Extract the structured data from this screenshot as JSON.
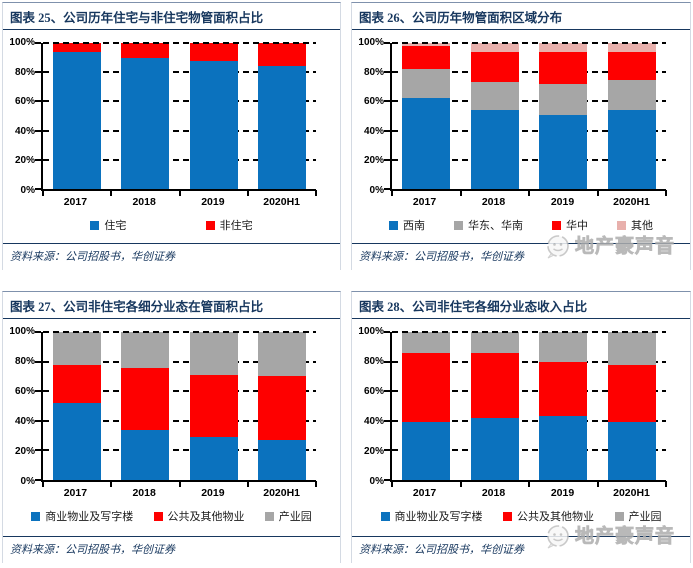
{
  "source_note": "资料来源：公司招股书，华创证券",
  "watermark": {
    "text": "地产豪声音",
    "logo": "speech-bubble-face-icon"
  },
  "colors": {
    "blue": "#0B72BE",
    "red": "#FE0000",
    "gray": "#A6A6A6",
    "pink": "#E8B0AC",
    "navy": "#17375E",
    "axis": "#000000",
    "watermark_gray": "#BDBDBD"
  },
  "chart_data": [
    {
      "type": "bar",
      "subtype": "stacked-percent",
      "title": "图表 25、公司历年住宅与非住宅物管面积占比",
      "categories": [
        "2017",
        "2018",
        "2019",
        "2020H1"
      ],
      "series": [
        {
          "name": "住宅",
          "color": "#0B72BE",
          "values": [
            94,
            90,
            88,
            84
          ]
        },
        {
          "name": "非住宅",
          "color": "#FE0000",
          "values": [
            6,
            10,
            12,
            16
          ]
        }
      ],
      "ylabel": "",
      "xlabel": "",
      "ylim": [
        0,
        100
      ],
      "yticks": [
        "0%",
        "20%",
        "40%",
        "60%",
        "80%",
        "100%"
      ],
      "grid": "dashed-horizontal",
      "legend_position": "bottom"
    },
    {
      "type": "bar",
      "subtype": "stacked-percent",
      "title": "图表 26、公司历年物管面积区域分布",
      "categories": [
        "2017",
        "2018",
        "2019",
        "2020H1"
      ],
      "series": [
        {
          "name": "西南",
          "color": "#0B72BE",
          "values": [
            62,
            54,
            51,
            54
          ]
        },
        {
          "name": "华东、华南",
          "color": "#A6A6A6",
          "values": [
            20,
            19,
            21,
            21
          ]
        },
        {
          "name": "华中",
          "color": "#FE0000",
          "values": [
            16,
            21,
            22,
            19
          ]
        },
        {
          "name": "其他",
          "color": "#E8B0AC",
          "values": [
            2,
            6,
            6,
            6
          ]
        }
      ],
      "ylabel": "",
      "xlabel": "",
      "ylim": [
        0,
        100
      ],
      "yticks": [
        "0%",
        "20%",
        "40%",
        "60%",
        "80%",
        "100%"
      ],
      "grid": "dashed-horizontal",
      "legend_position": "bottom"
    },
    {
      "type": "bar",
      "subtype": "stacked-percent",
      "title": "图表 27、公司非住宅各细分业态在管面积占比",
      "categories": [
        "2017",
        "2018",
        "2019",
        "2020H1"
      ],
      "series": [
        {
          "name": "商业物业及写字楼",
          "color": "#0B72BE",
          "values": [
            52,
            34,
            29,
            27
          ]
        },
        {
          "name": "公共及其他物业",
          "color": "#FE0000",
          "values": [
            26,
            42,
            42,
            43
          ]
        },
        {
          "name": "产业园",
          "color": "#A6A6A6",
          "values": [
            22,
            24,
            29,
            30
          ]
        }
      ],
      "ylabel": "",
      "xlabel": "",
      "ylim": [
        0,
        100
      ],
      "yticks": [
        "0%",
        "20%",
        "40%",
        "60%",
        "80%",
        "100%"
      ],
      "grid": "dashed-horizontal",
      "legend_position": "bottom"
    },
    {
      "type": "bar",
      "subtype": "stacked-percent",
      "title": "图表 28、公司非住宅各细分业态收入占比",
      "categories": [
        "2017",
        "2018",
        "2019",
        "2020H1"
      ],
      "series": [
        {
          "name": "商业物业及写字楼",
          "color": "#0B72BE",
          "values": [
            39,
            42,
            43,
            39
          ]
        },
        {
          "name": "公共及其他物业",
          "color": "#FE0000",
          "values": [
            47,
            44,
            37,
            39
          ]
        },
        {
          "name": "产业园",
          "color": "#A6A6A6",
          "values": [
            14,
            14,
            20,
            22
          ]
        }
      ],
      "ylabel": "",
      "xlabel": "",
      "ylim": [
        0,
        100
      ],
      "yticks": [
        "0%",
        "20%",
        "40%",
        "60%",
        "80%",
        "100%"
      ],
      "grid": "dashed-horizontal",
      "legend_position": "bottom"
    }
  ]
}
